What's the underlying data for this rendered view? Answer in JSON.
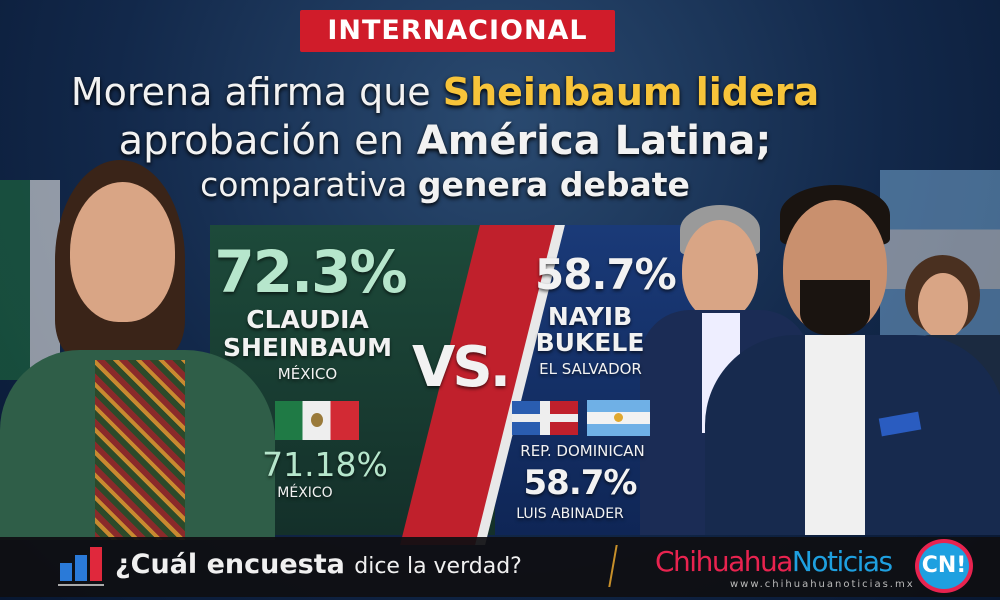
{
  "badge": "INTERNACIONAL",
  "headline": {
    "line1_a": "Morena afirma que ",
    "line1_b": "Sheinbaum lidera",
    "line2_a": "aprobación en ",
    "line2_b": "América Latina;",
    "line3_a": "comparativa ",
    "line3_b": "genera debate"
  },
  "left": {
    "percent": "72.3%",
    "name1": "CLAUDIA",
    "name2": "SHEINBAUM",
    "country": "MÉXICO",
    "flag": "mexico-flag",
    "percent2": "71.18%",
    "country2": "MÉXICO"
  },
  "vs": "VS.",
  "right": {
    "percent": "58.7%",
    "name1": "NAYIB",
    "name2": "BUKELE",
    "country": "EL SALVADOR",
    "flags": [
      "dominican-republic-flag",
      "argentina-flag"
    ],
    "country2": "REP. DOMINICAN",
    "percent2": "58.7%",
    "person2": "LUIS ABINADER"
  },
  "footer": {
    "question_a": "¿Cuál encuesta ",
    "question_b": "dice la verdad?",
    "brand_a": "Chihuahua",
    "brand_b": "Noticias",
    "logo": "CN!",
    "url": "www.chihuahuanoticias.mx"
  },
  "colors": {
    "accent_red": "#d01c2a",
    "headline_yellow": "#f7c43a",
    "brand_pink": "#e8234f",
    "brand_blue": "#1ea0e0"
  }
}
